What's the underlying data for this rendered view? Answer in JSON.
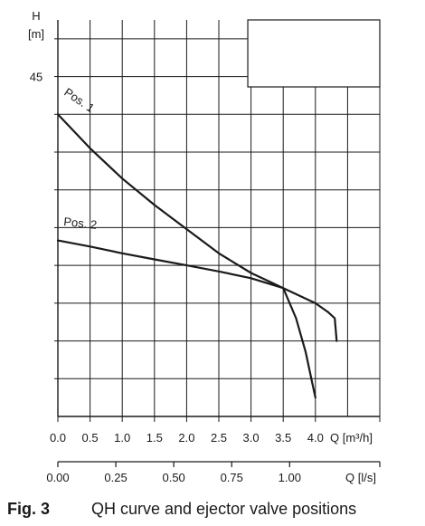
{
  "chart_data": {
    "type": "line",
    "y_axis": {
      "symbol": "H",
      "unit": "[m]",
      "labeled_tick": "45",
      "range": [
        0,
        52.5
      ],
      "grid_step": 5
    },
    "x_axis": {
      "range": [
        0,
        5
      ],
      "grid_step": 0.5,
      "tick_values": [
        0,
        0.5,
        1,
        1.5,
        2,
        2.5,
        3,
        3.5,
        4
      ],
      "tick_labels": [
        "0.0",
        "0.5",
        "1.0",
        "1.5",
        "2.0",
        "2.5",
        "3.0",
        "3.5",
        "4.0"
      ],
      "label": "Q [m³/h]"
    },
    "x_axis_secondary": {
      "range": [
        0,
        1.389
      ],
      "tick_values": [
        0,
        0.25,
        0.5,
        0.75,
        1.0
      ],
      "tick_labels": [
        "0.00",
        "0.25",
        "0.50",
        "0.75",
        "1.00"
      ],
      "label": "Q [l/s]"
    },
    "grid": true,
    "series": [
      {
        "name": "Pos. 1",
        "x": [
          0.0,
          0.5,
          1.0,
          1.5,
          2.0,
          2.5,
          3.0,
          3.3,
          3.5,
          3.7,
          3.85,
          3.95,
          4.0
        ],
        "y": [
          40.0,
          35.5,
          31.5,
          28.0,
          24.8,
          21.6,
          19.0,
          17.8,
          17.0,
          13.0,
          8.5,
          4.5,
          2.5
        ]
      },
      {
        "name": "Pos. 2",
        "x": [
          0.0,
          0.5,
          1.0,
          1.5,
          2.0,
          2.5,
          3.0,
          3.5,
          4.0,
          4.2,
          4.3,
          4.32,
          4.33
        ],
        "y": [
          23.3,
          22.5,
          21.6,
          20.8,
          20.0,
          19.2,
          18.3,
          17.0,
          15.0,
          13.8,
          13.0,
          11.0,
          10.0
        ]
      }
    ]
  },
  "caption": {
    "label": "Fig. 3",
    "text": "QH curve and ejector valve positions"
  }
}
